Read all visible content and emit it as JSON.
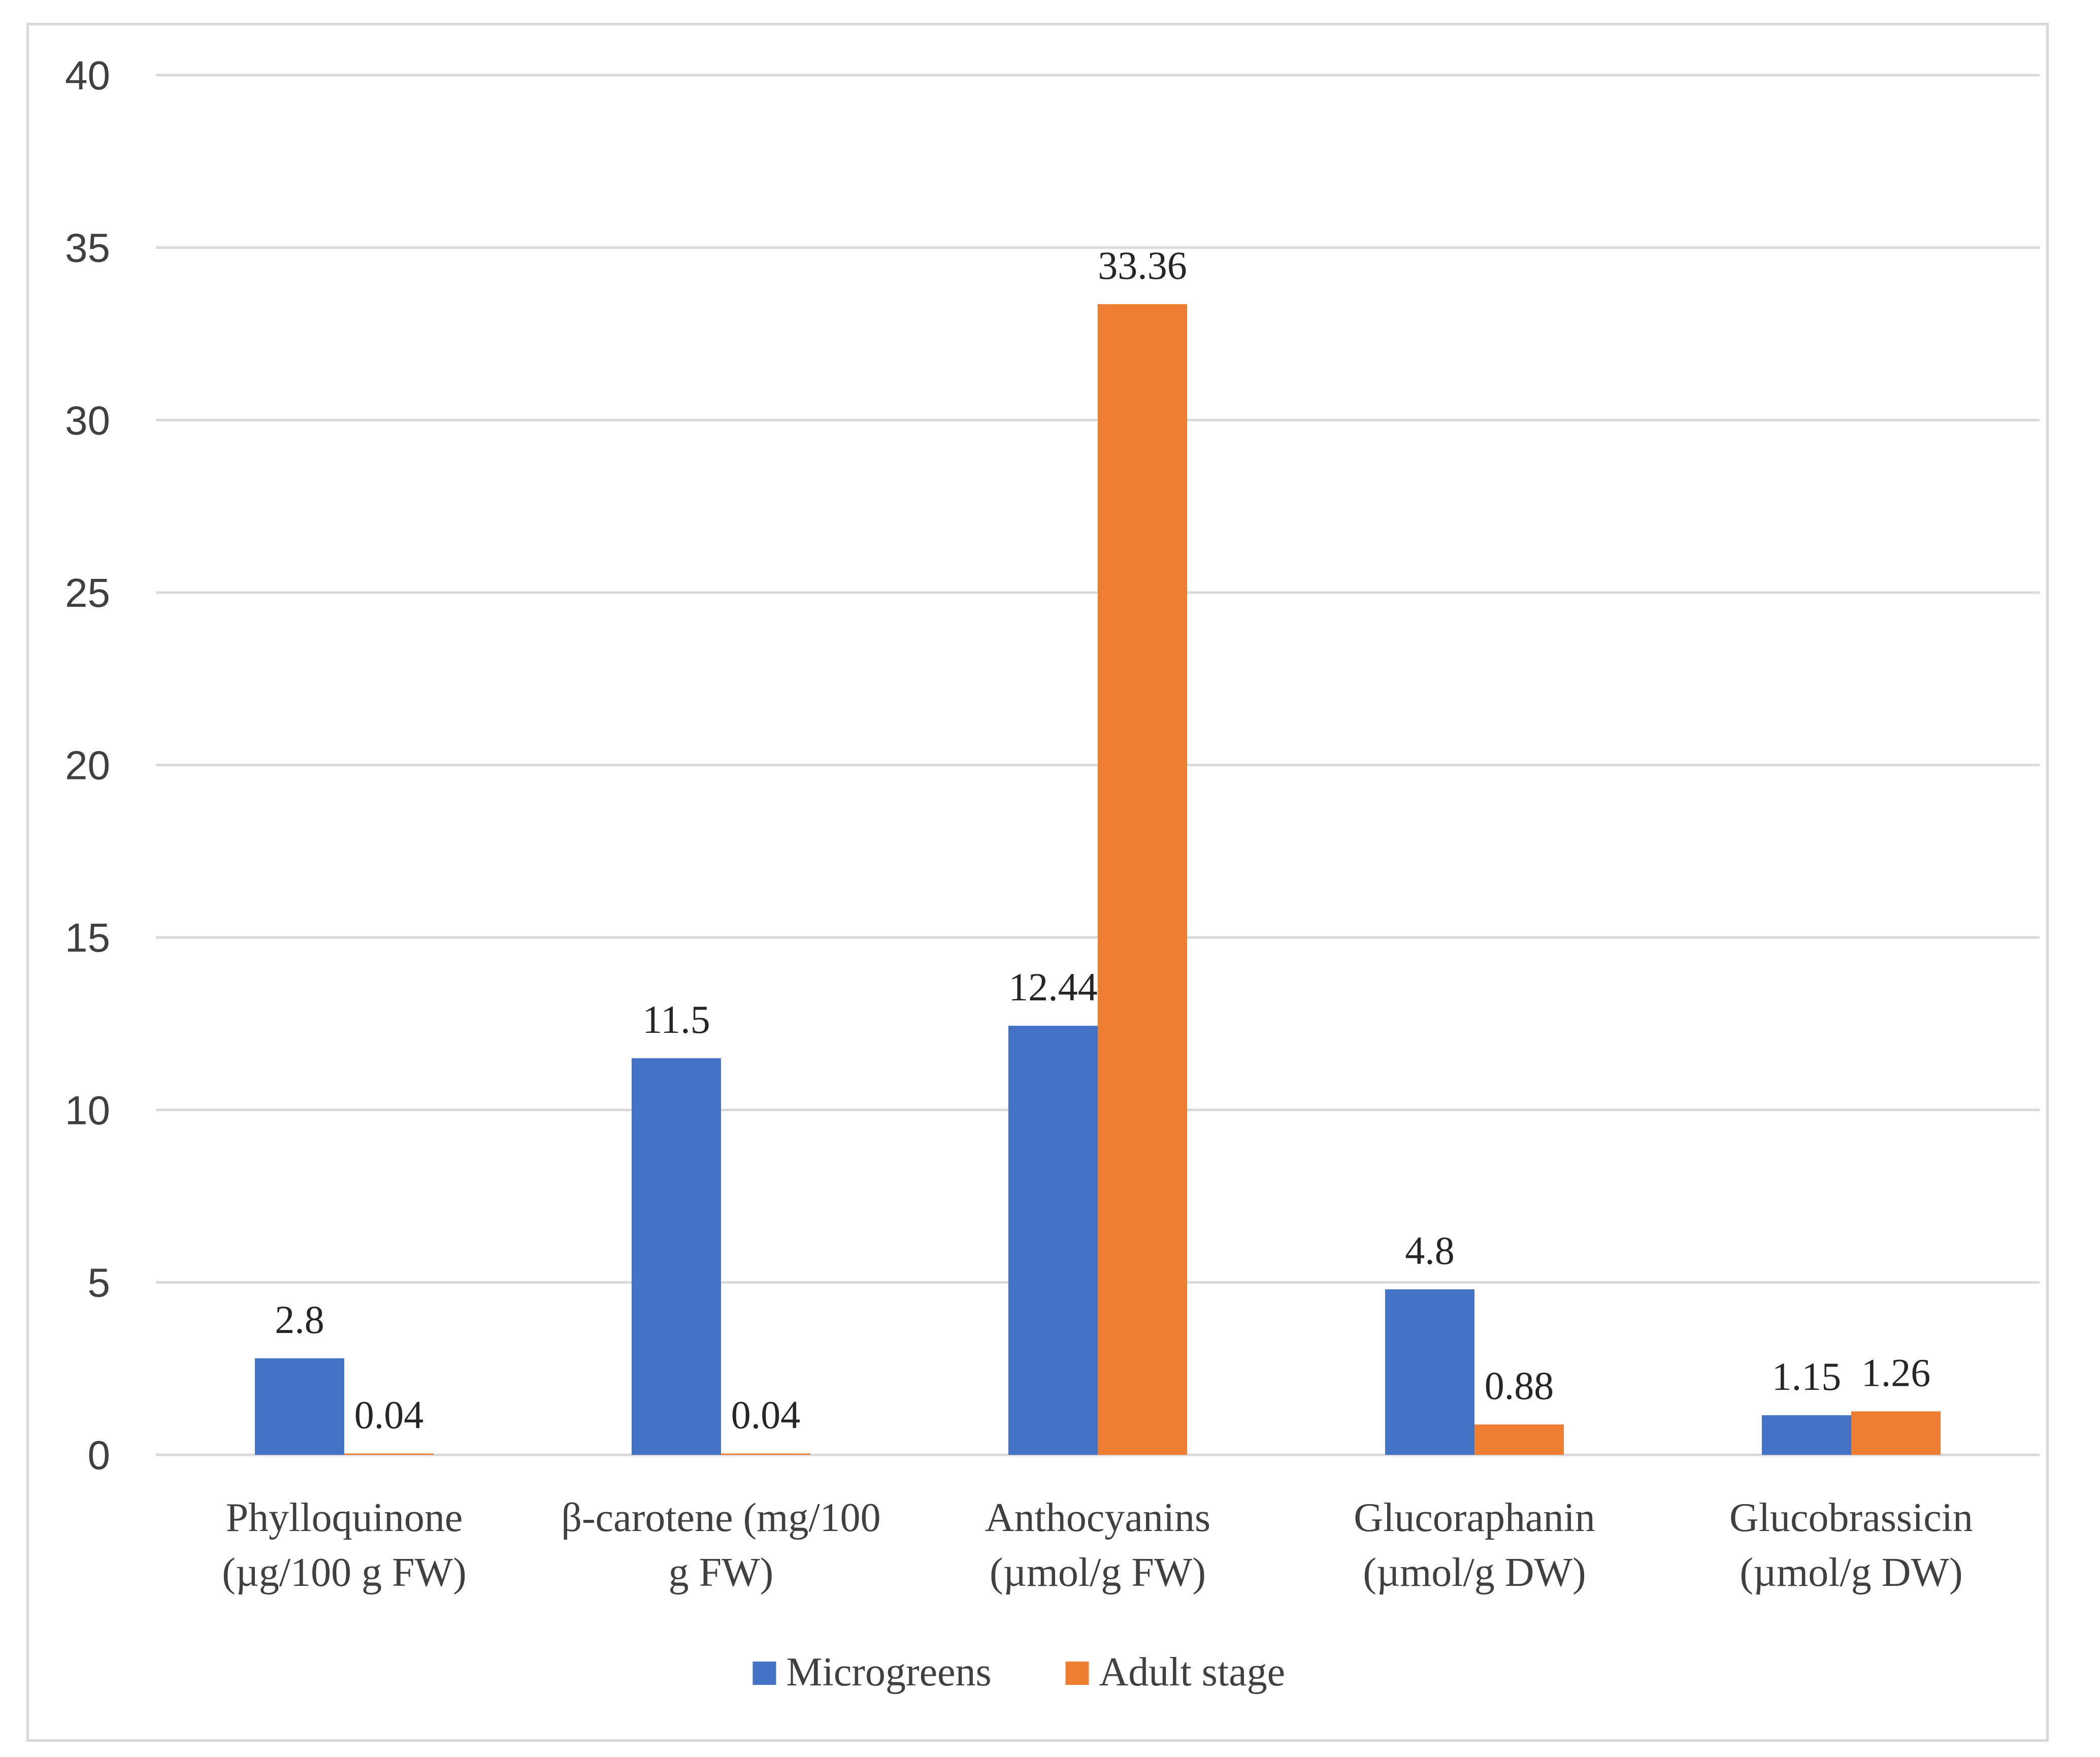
{
  "chart_data": {
    "type": "bar",
    "title": "",
    "xlabel": "",
    "ylabel": "",
    "ylim": [
      0,
      40
    ],
    "yticks": [
      0,
      5,
      10,
      15,
      20,
      25,
      30,
      35,
      40
    ],
    "grid": true,
    "legend_position": "bottom",
    "categories": [
      [
        "Phylloquinone",
        "(µg/100 g FW)"
      ],
      [
        "β-carotene (mg/100",
        "g FW)"
      ],
      [
        "Anthocyanins",
        "(µmol/g FW)"
      ],
      [
        "Glucoraphanin",
        "(µmol/g DW)"
      ],
      [
        "Glucobrassicin",
        "(µmol/g DW)"
      ]
    ],
    "series": [
      {
        "name": "Microgreens",
        "color": "#4472c4",
        "values": [
          2.8,
          11.5,
          12.44,
          4.8,
          1.15
        ],
        "labels": [
          "2.8",
          "11.5",
          "12.44",
          "4.8",
          "1.15"
        ]
      },
      {
        "name": "Adult stage",
        "color": "#ed7d31",
        "values": [
          0.04,
          0.04,
          33.36,
          0.88,
          1.26
        ],
        "labels": [
          "0.04",
          "0.04",
          "33.36",
          "0.88",
          "1.26"
        ]
      }
    ]
  }
}
